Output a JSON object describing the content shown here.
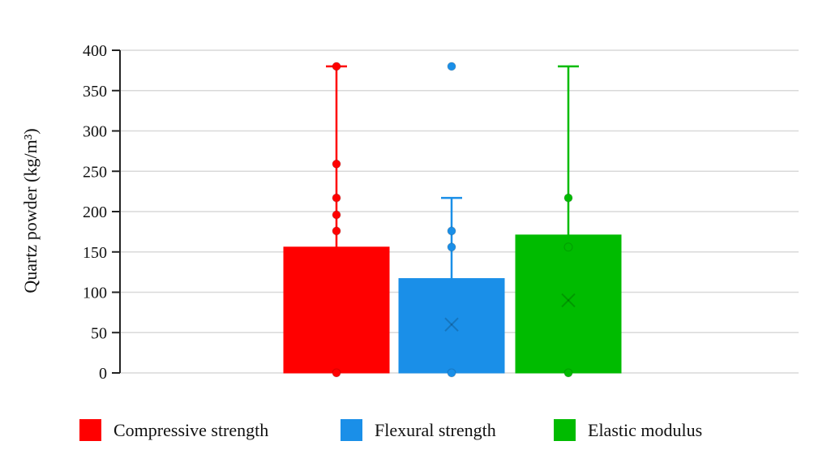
{
  "chart_data": {
    "type": "bar",
    "title": "",
    "xlabel": "",
    "ylabel": "Quartz powder (kg/m³)",
    "ylim": [
      0,
      400
    ],
    "yticks": [
      0,
      50,
      100,
      150,
      200,
      250,
      300,
      350,
      400
    ],
    "grid": true,
    "legend_position": "bottom",
    "series": [
      {
        "name": "Compressive strength",
        "color": "#ff0000",
        "bar_value": 156,
        "whisker_min": 0,
        "whisker_max": 380,
        "mean": 0,
        "points": [
          380,
          259,
          217,
          196,
          176,
          0
        ]
      },
      {
        "name": "Flexural strength",
        "color": "#1a8fe8",
        "bar_value": 117,
        "whisker_min": 0,
        "whisker_max": 217,
        "mean": 60,
        "points": [
          380,
          176,
          156,
          0
        ]
      },
      {
        "name": "Elastic modulus",
        "color": "#00bb00",
        "bar_value": 171,
        "whisker_min": 0,
        "whisker_max": 380,
        "mean": 90,
        "points": [
          217,
          156,
          0
        ]
      }
    ]
  }
}
